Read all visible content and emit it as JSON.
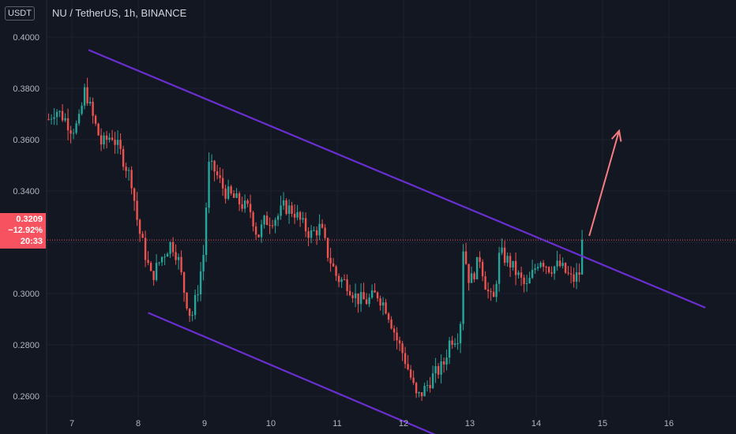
{
  "header": {
    "symbol": "NU / TetherUS, 1h, BINANCE",
    "currency": "USDT"
  },
  "price_tag": {
    "price": "0.3209",
    "change": "−12.92%",
    "countdown": "20:33"
  },
  "colors": {
    "background": "#131722",
    "up": "#26a69a",
    "down": "#ef5350",
    "channel": "#6a2fd1",
    "arrow": "#f77c80",
    "price_line": "#f7525f"
  },
  "chart_data": {
    "type": "candlestick",
    "title": "NU / TetherUS, 1h, BINANCE",
    "y_ticks": [
      "0.4000",
      "0.3800",
      "0.3600",
      "0.3400",
      "0.3200",
      "0.3000",
      "0.2800",
      "0.2600"
    ],
    "x_ticks": [
      "7",
      "8",
      "9",
      "10",
      "11",
      "12",
      "13",
      "14",
      "15",
      "16"
    ],
    "ylim": [
      0.252,
      0.4034
    ],
    "x_range_days": [
      6.6,
      17.0
    ],
    "current_price": 0.3209,
    "ohlc_anchors": [
      {
        "t": 6.65,
        "p": 0.368
      },
      {
        "t": 6.75,
        "p": 0.372
      },
      {
        "t": 6.9,
        "p": 0.368
      },
      {
        "t": 7.0,
        "p": 0.364
      },
      {
        "t": 7.1,
        "p": 0.366
      },
      {
        "t": 7.2,
        "p": 0.38
      },
      {
        "t": 7.3,
        "p": 0.37
      },
      {
        "t": 7.45,
        "p": 0.358
      },
      {
        "t": 7.6,
        "p": 0.362
      },
      {
        "t": 7.75,
        "p": 0.354
      },
      {
        "t": 7.9,
        "p": 0.344
      },
      {
        "t": 8.0,
        "p": 0.326
      },
      {
        "t": 8.1,
        "p": 0.316
      },
      {
        "t": 8.2,
        "p": 0.306
      },
      {
        "t": 8.35,
        "p": 0.314
      },
      {
        "t": 8.5,
        "p": 0.32
      },
      {
        "t": 8.6,
        "p": 0.314
      },
      {
        "t": 8.7,
        "p": 0.3
      },
      {
        "t": 8.8,
        "p": 0.29
      },
      {
        "t": 8.9,
        "p": 0.302
      },
      {
        "t": 9.0,
        "p": 0.318
      },
      {
        "t": 9.05,
        "p": 0.35
      },
      {
        "t": 9.15,
        "p": 0.348
      },
      {
        "t": 9.3,
        "p": 0.34
      },
      {
        "t": 9.5,
        "p": 0.336
      },
      {
        "t": 9.7,
        "p": 0.332
      },
      {
        "t": 9.8,
        "p": 0.322
      },
      {
        "t": 9.9,
        "p": 0.328
      },
      {
        "t": 10.1,
        "p": 0.33
      },
      {
        "t": 10.2,
        "p": 0.334
      },
      {
        "t": 10.35,
        "p": 0.332
      },
      {
        "t": 10.5,
        "p": 0.326
      },
      {
        "t": 10.6,
        "p": 0.323
      },
      {
        "t": 10.75,
        "p": 0.326
      },
      {
        "t": 10.85,
        "p": 0.316
      },
      {
        "t": 11.0,
        "p": 0.306
      },
      {
        "t": 11.15,
        "p": 0.304
      },
      {
        "t": 11.3,
        "p": 0.298
      },
      {
        "t": 11.45,
        "p": 0.297
      },
      {
        "t": 11.6,
        "p": 0.3
      },
      {
        "t": 11.75,
        "p": 0.294
      },
      {
        "t": 11.9,
        "p": 0.282
      },
      {
        "t": 12.0,
        "p": 0.276
      },
      {
        "t": 12.1,
        "p": 0.268
      },
      {
        "t": 12.2,
        "p": 0.259
      },
      {
        "t": 12.3,
        "p": 0.262
      },
      {
        "t": 12.45,
        "p": 0.268
      },
      {
        "t": 12.6,
        "p": 0.272
      },
      {
        "t": 12.7,
        "p": 0.282
      },
      {
        "t": 12.85,
        "p": 0.284
      },
      {
        "t": 12.9,
        "p": 0.318
      },
      {
        "t": 13.0,
        "p": 0.304
      },
      {
        "t": 13.15,
        "p": 0.314
      },
      {
        "t": 13.25,
        "p": 0.302
      },
      {
        "t": 13.35,
        "p": 0.296
      },
      {
        "t": 13.45,
        "p": 0.316
      },
      {
        "t": 13.6,
        "p": 0.312
      },
      {
        "t": 13.75,
        "p": 0.306
      },
      {
        "t": 13.85,
        "p": 0.302
      },
      {
        "t": 13.95,
        "p": 0.308
      },
      {
        "t": 14.05,
        "p": 0.314
      },
      {
        "t": 14.2,
        "p": 0.31
      },
      {
        "t": 14.35,
        "p": 0.311
      },
      {
        "t": 14.45,
        "p": 0.308
      },
      {
        "t": 14.55,
        "p": 0.305
      },
      {
        "t": 14.65,
        "p": 0.308
      },
      {
        "t": 14.7,
        "p": 0.3209
      }
    ],
    "annotations": {
      "upper_trendline": [
        {
          "t": 7.25,
          "p": 0.395
        },
        {
          "t": 16.55,
          "p": 0.2945
        }
      ],
      "lower_trendline": [
        {
          "t": 8.15,
          "p": 0.2925
        },
        {
          "t": 12.7,
          "p": 0.2425
        }
      ],
      "arrow": [
        {
          "t": 14.8,
          "p": 0.3225
        },
        {
          "t": 15.25,
          "p": 0.3635
        }
      ]
    }
  }
}
